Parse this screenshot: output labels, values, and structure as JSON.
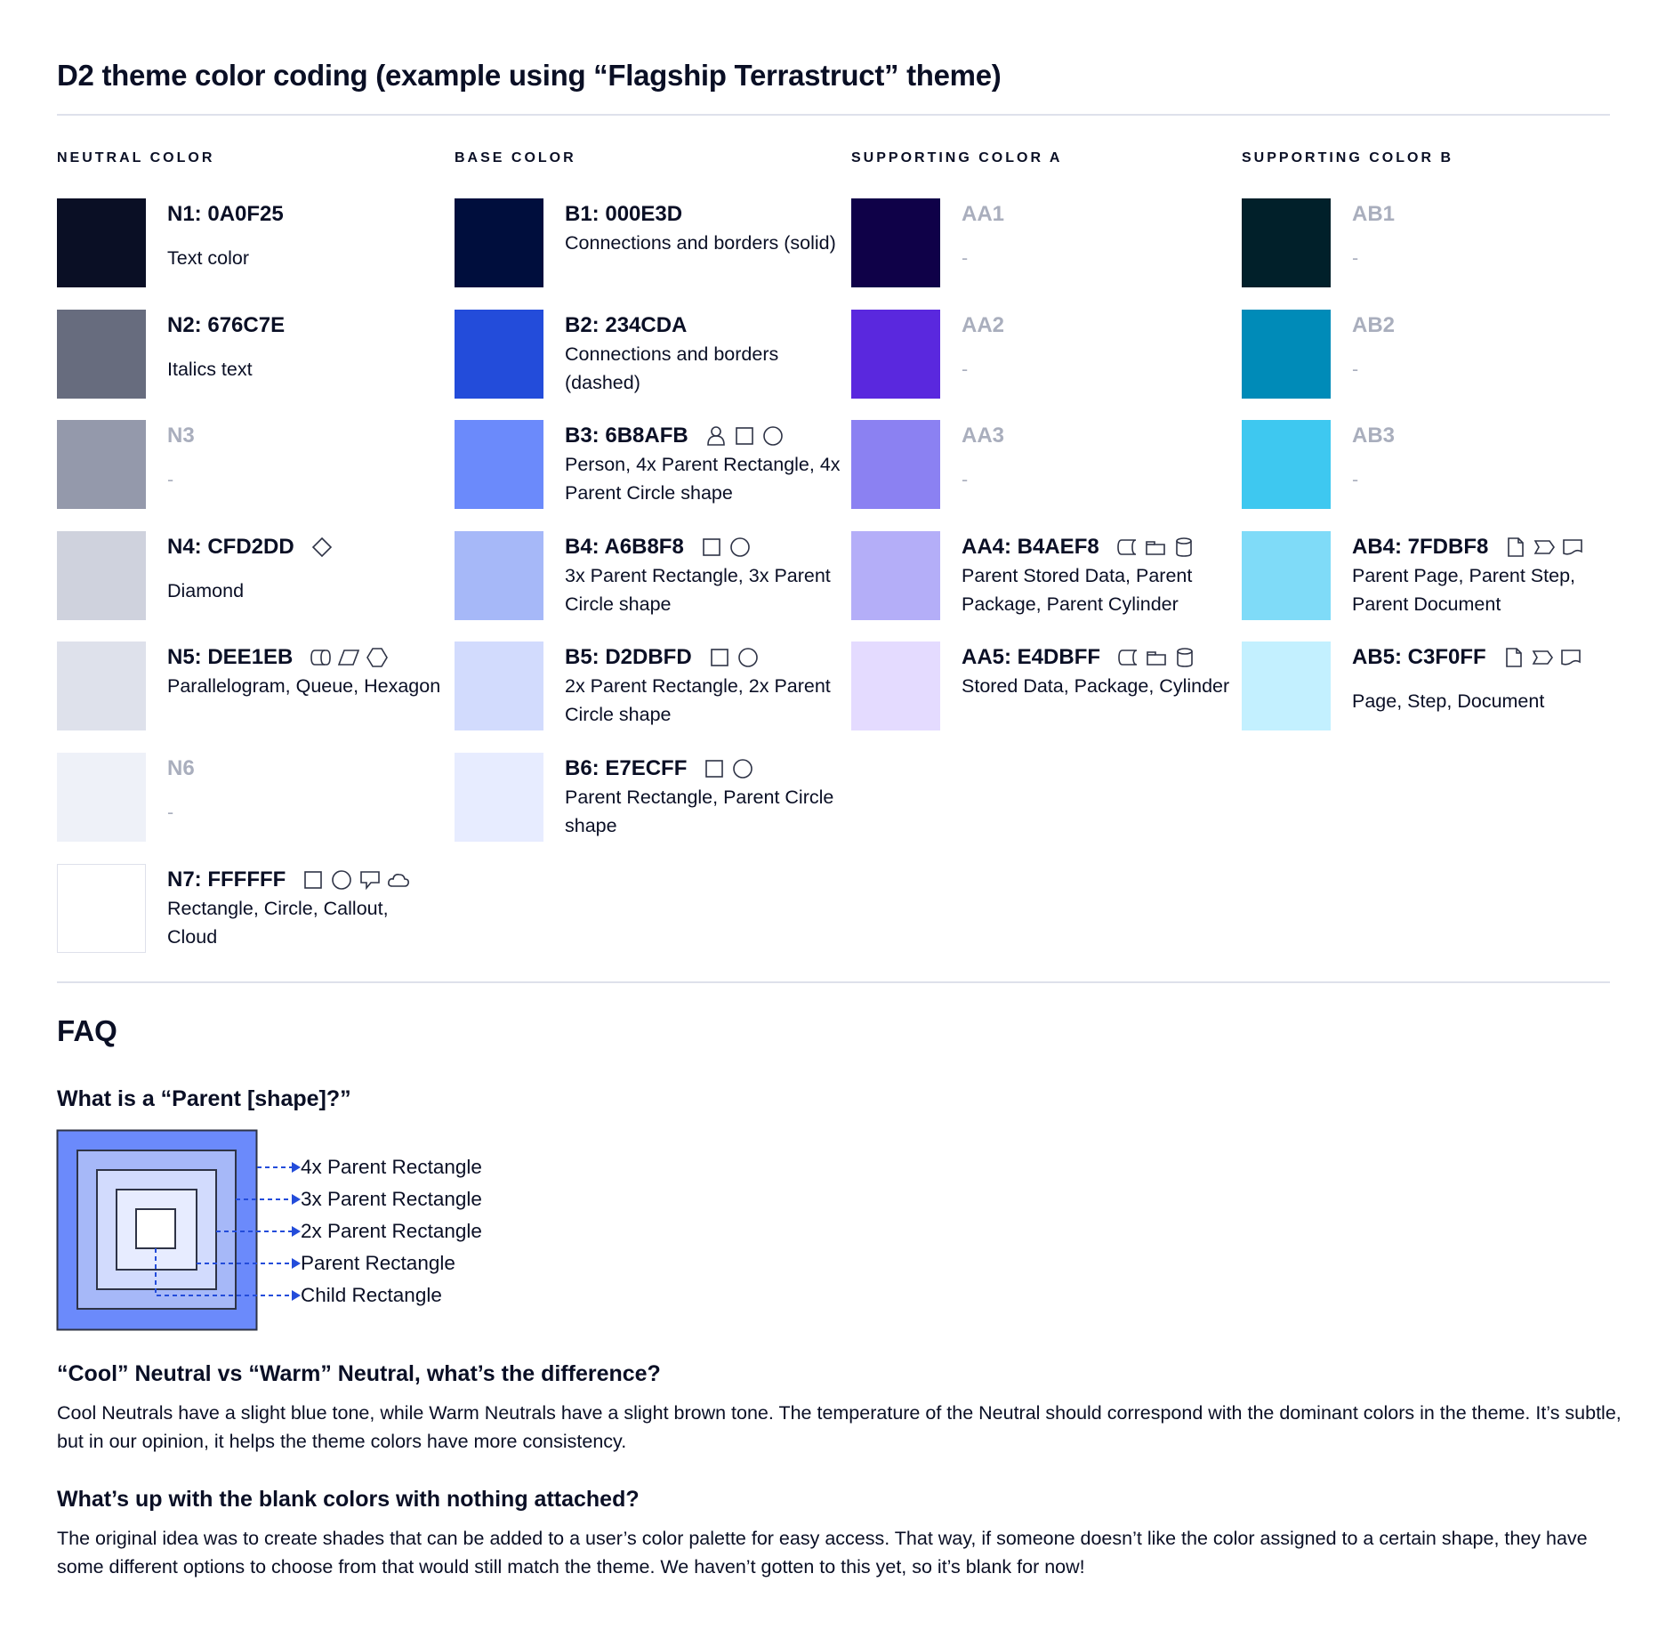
{
  "title": "D2 theme color coding (example using “Flagship Terrastruct” theme)",
  "columns": [
    {
      "header": "NEUTRAL COLOR",
      "items": [
        {
          "label": "N1: 0A0F25",
          "color": "#0A0F25",
          "desc": "Text color",
          "blank": false,
          "icons": []
        },
        {
          "label": "N2: 676C7E",
          "color": "#676C7E",
          "desc": "Italics text",
          "blank": false,
          "icons": []
        },
        {
          "label": "N3",
          "color": "#9499AB",
          "desc": "-",
          "blank": true,
          "icons": []
        },
        {
          "label": "N4: CFD2DD",
          "color": "#CFD2DD",
          "desc": "Diamond",
          "blank": false,
          "icons": [
            "diamond"
          ]
        },
        {
          "label": "N5: DEE1EB",
          "color": "#DEE1EB",
          "desc": "Parallelogram, Queue, Hexagon",
          "blank": false,
          "icons": [
            "queue",
            "parallelogram",
            "hexagon"
          ]
        },
        {
          "label": "N6",
          "color": "#EEF1F8",
          "desc": "-",
          "blank": true,
          "icons": []
        },
        {
          "label": "N7: FFFFFF",
          "color": "#FFFFFF",
          "desc": "Rectangle, Circle, Callout, Cloud",
          "blank": false,
          "icons": [
            "rectangle",
            "circle",
            "callout",
            "cloud"
          ]
        }
      ]
    },
    {
      "header": "BASE COLOR",
      "items": [
        {
          "label": "B1: 000E3D",
          "color": "#000E3D",
          "desc": "Connections and borders (solid)",
          "blank": false,
          "icons": []
        },
        {
          "label": "B2: 234CDA",
          "color": "#234CDA",
          "desc": "Connections and borders (dashed)",
          "blank": false,
          "icons": []
        },
        {
          "label": "B3: 6B8AFB",
          "color": "#6B8AFB",
          "desc": "Person, 4x Parent Rectangle, 4x Parent Circle shape",
          "blank": false,
          "icons": [
            "person",
            "rectangle",
            "circle"
          ]
        },
        {
          "label": "B4: A6B8F8",
          "color": "#A6B8F8",
          "desc": "3x Parent Rectangle, 3x Parent Circle shape",
          "blank": false,
          "icons": [
            "rectangle",
            "circle"
          ]
        },
        {
          "label": "B5: D2DBFD",
          "color": "#D2DBFD",
          "desc": "2x Parent Rectangle, 2x Parent Circle shape",
          "blank": false,
          "icons": [
            "rectangle",
            "circle"
          ]
        },
        {
          "label": "B6: E7ECFF",
          "color": "#E7ECFF",
          "desc": "Parent Rectangle, Parent Circle shape",
          "blank": false,
          "icons": [
            "rectangle",
            "circle"
          ]
        }
      ]
    },
    {
      "header": "SUPPORTING COLOR A",
      "items": [
        {
          "label": "AA1",
          "color": "#0F0148",
          "desc": "-",
          "blank": true,
          "icons": []
        },
        {
          "label": "AA2",
          "color": "#5A28DE",
          "desc": "-",
          "blank": true,
          "icons": []
        },
        {
          "label": "AA3",
          "color": "#8B81F2",
          "desc": "-",
          "blank": true,
          "icons": []
        },
        {
          "label": "AA4: B4AEF8",
          "color": "#B4AEF8",
          "desc": "Parent Stored Data, Parent Package,  Parent Cylinder",
          "blank": false,
          "icons": [
            "stored-data",
            "package",
            "cylinder"
          ]
        },
        {
          "label": "AA5: E4DBFF",
          "color": "#E4DBFF",
          "desc": "Stored Data, Package, Cylinder",
          "blank": false,
          "icons": [
            "stored-data",
            "package",
            "cylinder"
          ]
        }
      ]
    },
    {
      "header": "SUPPORTING COLOR B",
      "items": [
        {
          "label": "AB1",
          "color": "#01202A",
          "desc": "-",
          "blank": true,
          "icons": []
        },
        {
          "label": "AB2",
          "color": "#008BB8",
          "desc": "-",
          "blank": true,
          "icons": []
        },
        {
          "label": "AB3",
          "color": "#3EC8F0",
          "desc": "-",
          "blank": true,
          "icons": []
        },
        {
          "label": "AB4: 7FDBF8",
          "color": "#7FDBF8",
          "desc": "Parent Page, Parent Step, Parent Document",
          "blank": false,
          "icons": [
            "page",
            "step",
            "document"
          ]
        },
        {
          "label": "AB5: C3F0FF",
          "color": "#C3F0FF",
          "desc": "Page, Step, Document",
          "blank": false,
          "icons": [
            "page",
            "step",
            "document"
          ]
        }
      ]
    }
  ],
  "faq": {
    "heading": "FAQ",
    "q1": "What is a “Parent [shape]?”",
    "diagram_labels": [
      "4x Parent Rectangle",
      "3x Parent Rectangle",
      "2x Parent Rectangle",
      "Parent Rectangle",
      "Child Rectangle"
    ],
    "q2": "“Cool” Neutral vs “Warm” Neutral, what’s the difference?",
    "a2": "Cool Neutrals have a slight blue tone, while Warm Neutrals have a slight brown tone. The temperature of the Neutral should correspond with the dominant colors in the theme. It’s subtle, but in our opinion, it helps the theme colors have more consistency.",
    "q3": "What’s up with the blank colors with nothing attached?",
    "a3": "The original idea was to create shades that can be added to a user’s color palette for easy access. That way, if someone doesn’t like the color assigned to a certain shape, they have some different options to choose from that would still match the theme. We haven’t gotten to this yet, so it’s blank for now!"
  },
  "colors": {
    "text": "#0A0F25",
    "arrow": "#234CDA",
    "divider": "#DEE1EB",
    "blank_label": "#A9AEBD"
  }
}
